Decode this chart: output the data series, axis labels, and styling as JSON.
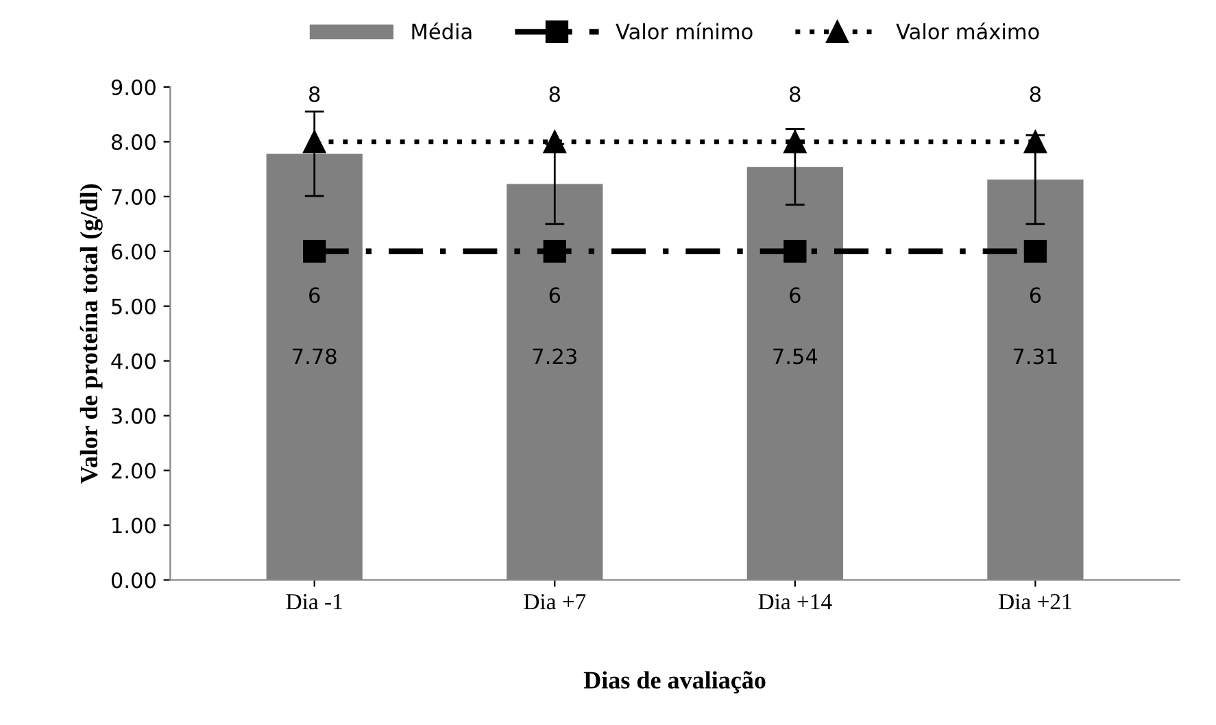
{
  "chart_data": {
    "type": "bar",
    "xlabel": "Dias de avaliação",
    "ylabel": "Valor de proteína total (g/dl)",
    "categories": [
      "Dia -1",
      "Dia +7",
      "Dia +14",
      "Dia +21"
    ],
    "series": [
      {
        "name": "Média",
        "color": "#808080",
        "values": [
          7.78,
          7.23,
          7.54,
          7.31
        ],
        "errors": [
          0.77,
          0.73,
          0.69,
          0.81
        ],
        "value_labels": [
          "7.78",
          "7.23",
          "7.54",
          "7.31"
        ]
      },
      {
        "name": "Valor mínimo",
        "type": "line",
        "color": "#000000",
        "values": [
          6,
          6,
          6,
          6
        ],
        "marker": "square",
        "line_style": "dashdot",
        "value_labels": [
          "6",
          "6",
          "6",
          "6"
        ]
      },
      {
        "name": "Valor máximo",
        "type": "line",
        "color": "#000000",
        "values": [
          8,
          8,
          8,
          8
        ],
        "marker": "triangle",
        "line_style": "dotted",
        "value_labels": [
          "8",
          "8",
          "8",
          "8"
        ]
      }
    ],
    "ylim": [
      0,
      9
    ],
    "yticks": [
      {
        "value": 0,
        "label": "0.00"
      },
      {
        "value": 1,
        "label": "1.00"
      },
      {
        "value": 2,
        "label": "2.00"
      },
      {
        "value": 3,
        "label": "3.00"
      },
      {
        "value": 4,
        "label": "4.00"
      },
      {
        "value": 5,
        "label": "5.00"
      },
      {
        "value": 6,
        "label": "6.00"
      },
      {
        "value": 7,
        "label": "7.00"
      },
      {
        "value": 8,
        "label": "8.00"
      },
      {
        "value": 9,
        "label": "9.00"
      }
    ],
    "grid": false,
    "legend": "top"
  }
}
